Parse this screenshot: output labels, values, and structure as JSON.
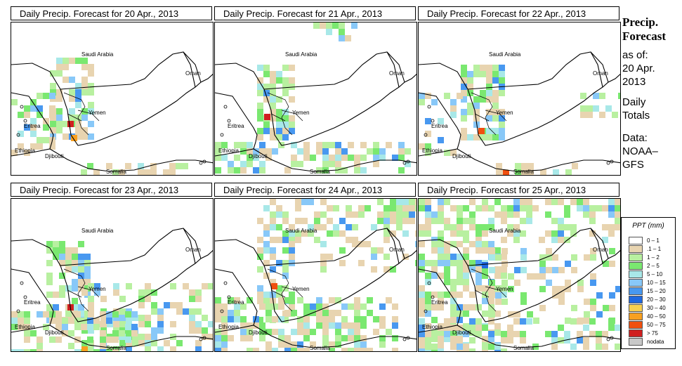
{
  "panels": [
    {
      "title": "Daily Precip. Forecast for  20 Apr., 2013"
    },
    {
      "title": "Daily Precip. Forecast for  21 Apr., 2013"
    },
    {
      "title": "Daily Precip. Forecast for  22 Apr., 2013"
    },
    {
      "title": "Daily Precip. Forecast for  23 Apr., 2013"
    },
    {
      "title": "Daily Precip. Forecast for  24 Apr., 2013"
    },
    {
      "title": "Daily Precip. Forecast for  25 Apr., 2013"
    }
  ],
  "map_labels": {
    "saudi": "Saudi Arabia",
    "oman": "Oman",
    "yemen": "Yemen",
    "eritrea": "Eritrea",
    "ethiopia": "Ethiopia",
    "djibouti": "Djibouti",
    "somalia": "Somalia"
  },
  "side": {
    "heading1": "Precip.",
    "heading2": "Forecast",
    "asof": "as of:",
    "date1": "20 Apr.",
    "date2": "2013",
    "daily1": "Daily",
    "daily2": "Totals",
    "data1": "Data:",
    "data2": "NOAA–",
    "data3": "GFS"
  },
  "legend": {
    "title": "PPT (mm)",
    "classes": [
      {
        "label": "0 – 1",
        "color": "#ffffff"
      },
      {
        "label": ".1 – 1",
        "color": "#e8d4b0"
      },
      {
        "label": "1 – 2",
        "color": "#b8f0a0"
      },
      {
        "label": "2 – 5",
        "color": "#7ae870"
      },
      {
        "label": "5 – 10",
        "color": "#a8e8e8"
      },
      {
        "label": "10 – 15",
        "color": "#88c8f8"
      },
      {
        "label": "15 – 20",
        "color": "#4898f0"
      },
      {
        "label": "20 – 30",
        "color": "#2068e0"
      },
      {
        "label": "30 – 40",
        "color": "#f8d050"
      },
      {
        "label": "40 – 50",
        "color": "#f8a020"
      },
      {
        "label": "50 – 75",
        "color": "#f05010"
      },
      {
        "label": "> 75",
        "color": "#d02020"
      },
      {
        "label": "nodata",
        "color": "#c8c8c8"
      }
    ]
  }
}
